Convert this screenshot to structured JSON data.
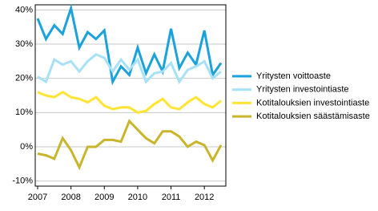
{
  "chart_data": {
    "type": "line",
    "categories": [
      "2007",
      null,
      null,
      null,
      "2008",
      null,
      null,
      null,
      "2009",
      null,
      null,
      null,
      "2010",
      null,
      null,
      null,
      "2011",
      null,
      null,
      null,
      "2012",
      null,
      null
    ],
    "series": [
      {
        "name": "Yritysten voittoaste",
        "color": "#1ba1dc",
        "values": [
          37.5,
          31.5,
          35.5,
          33,
          40.5,
          29,
          33.5,
          31.5,
          34,
          19,
          23.5,
          21,
          29,
          21.5,
          27,
          22,
          34.5,
          23,
          27.5,
          24,
          34,
          21,
          24.5
        ]
      },
      {
        "name": "Yritysten investointiaste",
        "color": "#a6e1f7",
        "values": [
          20.5,
          19,
          25.5,
          24,
          25,
          22,
          25,
          27,
          26,
          22,
          25.5,
          22.5,
          25.5,
          19,
          21.5,
          22,
          24.5,
          19,
          22.5,
          23.5,
          25,
          20,
          22
        ]
      },
      {
        "name": "Kotitalouksien investointiaste",
        "color": "#ffe433",
        "values": [
          16,
          15,
          14.5,
          16,
          14.5,
          14,
          13,
          14.5,
          12,
          11,
          11.5,
          11.5,
          10,
          10.5,
          12.5,
          14,
          11.5,
          11,
          13,
          14.5,
          12.5,
          11.5,
          13.5
        ]
      },
      {
        "name": "Kotitalouksien säästämisaste",
        "color": "#c9b52c",
        "values": [
          -2,
          -2.5,
          -3.5,
          2.5,
          -1,
          -6,
          0,
          0,
          2,
          2,
          1.5,
          7.5,
          5,
          2.5,
          1,
          4.5,
          4.5,
          3,
          0,
          1.5,
          0.5,
          -4,
          0.5
        ]
      }
    ],
    "ylim": [
      -11.5,
      41.5
    ],
    "yticks": [
      {
        "value": -10,
        "label": "-10%"
      },
      {
        "value": 0,
        "label": "0%"
      },
      {
        "value": 10,
        "label": "10%"
      },
      {
        "value": 20,
        "label": "20%"
      },
      {
        "value": 30,
        "label": "30%"
      },
      {
        "value": 40,
        "label": "40%"
      }
    ],
    "grid": true,
    "legend": "right"
  }
}
